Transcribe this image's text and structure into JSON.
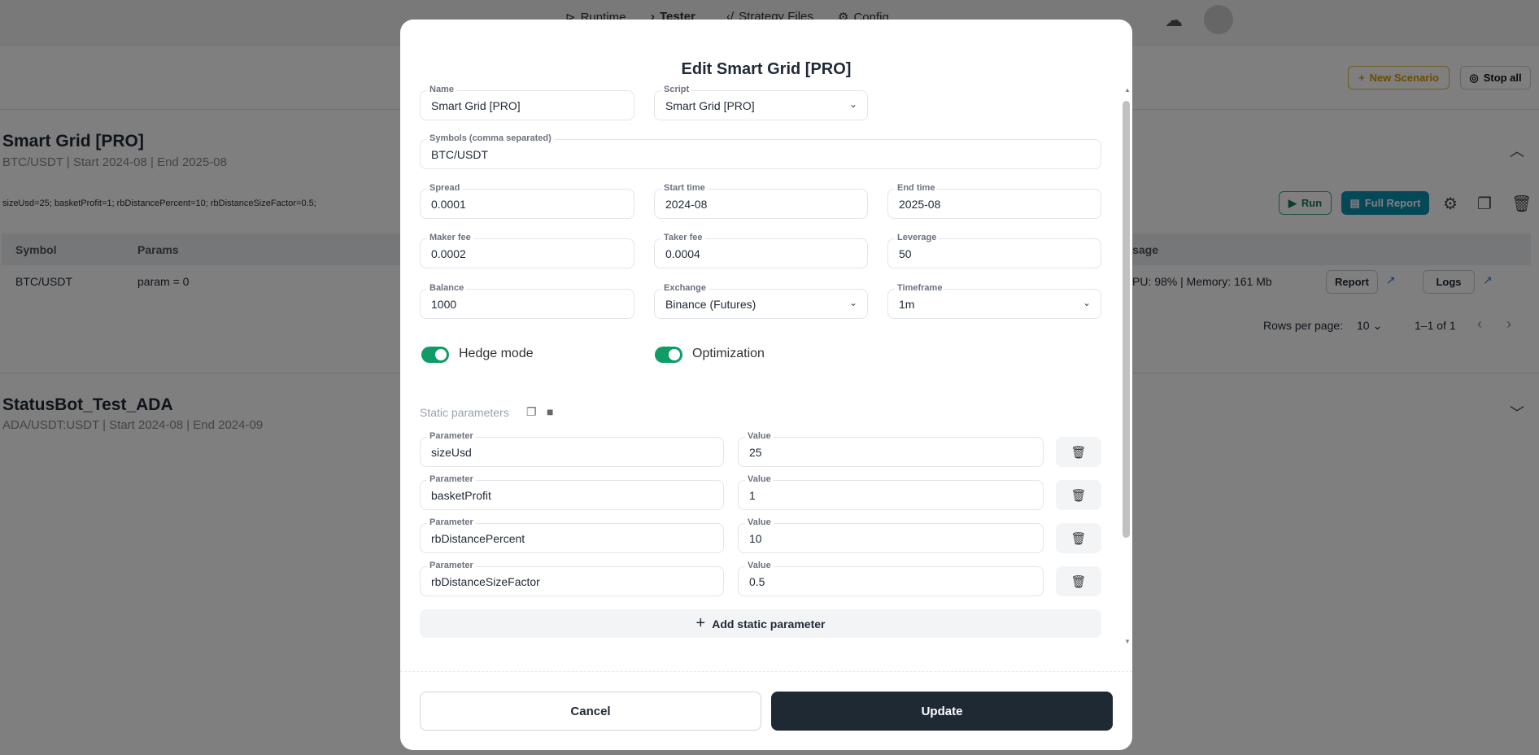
{
  "header": {
    "nav": [
      "Runtime",
      "Tester",
      "Strategy Files",
      "Config"
    ],
    "active": "Tester"
  },
  "toolbar": {
    "new_scenario": "New Scenario",
    "stop_all": "Stop all"
  },
  "scenarios": [
    {
      "title": "Smart Grid [PRO]",
      "subtitle": "BTC/USDT | Start 2024-08 | End 2025-08",
      "params": "sizeUsd=25; basketProfit=1; rbDistancePercent=10; rbDistanceSizeFactor=0.5;",
      "actions": {
        "run": "Run",
        "full_report": "Full Report"
      },
      "table": {
        "headers": [
          "Symbol",
          "Params",
          "Usage"
        ],
        "header_visible_usage": "sage",
        "rows": [
          {
            "symbol": "BTC/USDT",
            "params": "param = 0",
            "usage": "PU: 98% | Memory: 161 Mb",
            "report": "Report",
            "logs": "Logs"
          }
        ]
      },
      "pagination": {
        "rows_per_page_label": "Rows per page:",
        "rows_per_page": "10",
        "range": "1–1 of 1"
      }
    },
    {
      "title": "StatusBot_Test_ADA",
      "subtitle": "ADA/USDT:USDT | Start 2024-08 | End 2024-09"
    }
  ],
  "modal": {
    "title": "Edit Smart Grid [PRO]",
    "fields": {
      "name": {
        "label": "Name",
        "value": "Smart Grid [PRO]"
      },
      "script": {
        "label": "Script",
        "value": "Smart Grid [PRO]"
      },
      "symbols": {
        "label": "Symbols (comma separated)",
        "value": "BTC/USDT"
      },
      "spread": {
        "label": "Spread",
        "value": "0.0001"
      },
      "start": {
        "label": "Start time",
        "value": "2024-08"
      },
      "end": {
        "label": "End time",
        "value": "2025-08"
      },
      "maker": {
        "label": "Maker fee",
        "value": "0.0002"
      },
      "taker": {
        "label": "Taker fee",
        "value": "0.0004"
      },
      "leverage": {
        "label": "Leverage",
        "value": "50"
      },
      "balance": {
        "label": "Balance",
        "value": "1000"
      },
      "exchange": {
        "label": "Exchange",
        "value": "Binance (Futures)"
      },
      "timeframe": {
        "label": "Timeframe",
        "value": "1m"
      }
    },
    "toggles": {
      "hedge": {
        "label": "Hedge mode",
        "on": true
      },
      "optimization": {
        "label": "Optimization",
        "on": true
      }
    },
    "static_label": "Static parameters",
    "param_label": "Parameter",
    "value_label": "Value",
    "params": [
      {
        "name": "sizeUsd",
        "value": "25"
      },
      {
        "name": "basketProfit",
        "value": "1"
      },
      {
        "name": "rbDistancePercent",
        "value": "10"
      },
      {
        "name": "rbDistanceSizeFactor",
        "value": "0.5"
      }
    ],
    "add_param": "Add static parameter",
    "cancel": "Cancel",
    "update": "Update"
  },
  "colors": {
    "toggle": "#0f9d67",
    "primary": "#1f2933",
    "full_report": "#0a91b0",
    "new_scenario": "#d49a00"
  }
}
